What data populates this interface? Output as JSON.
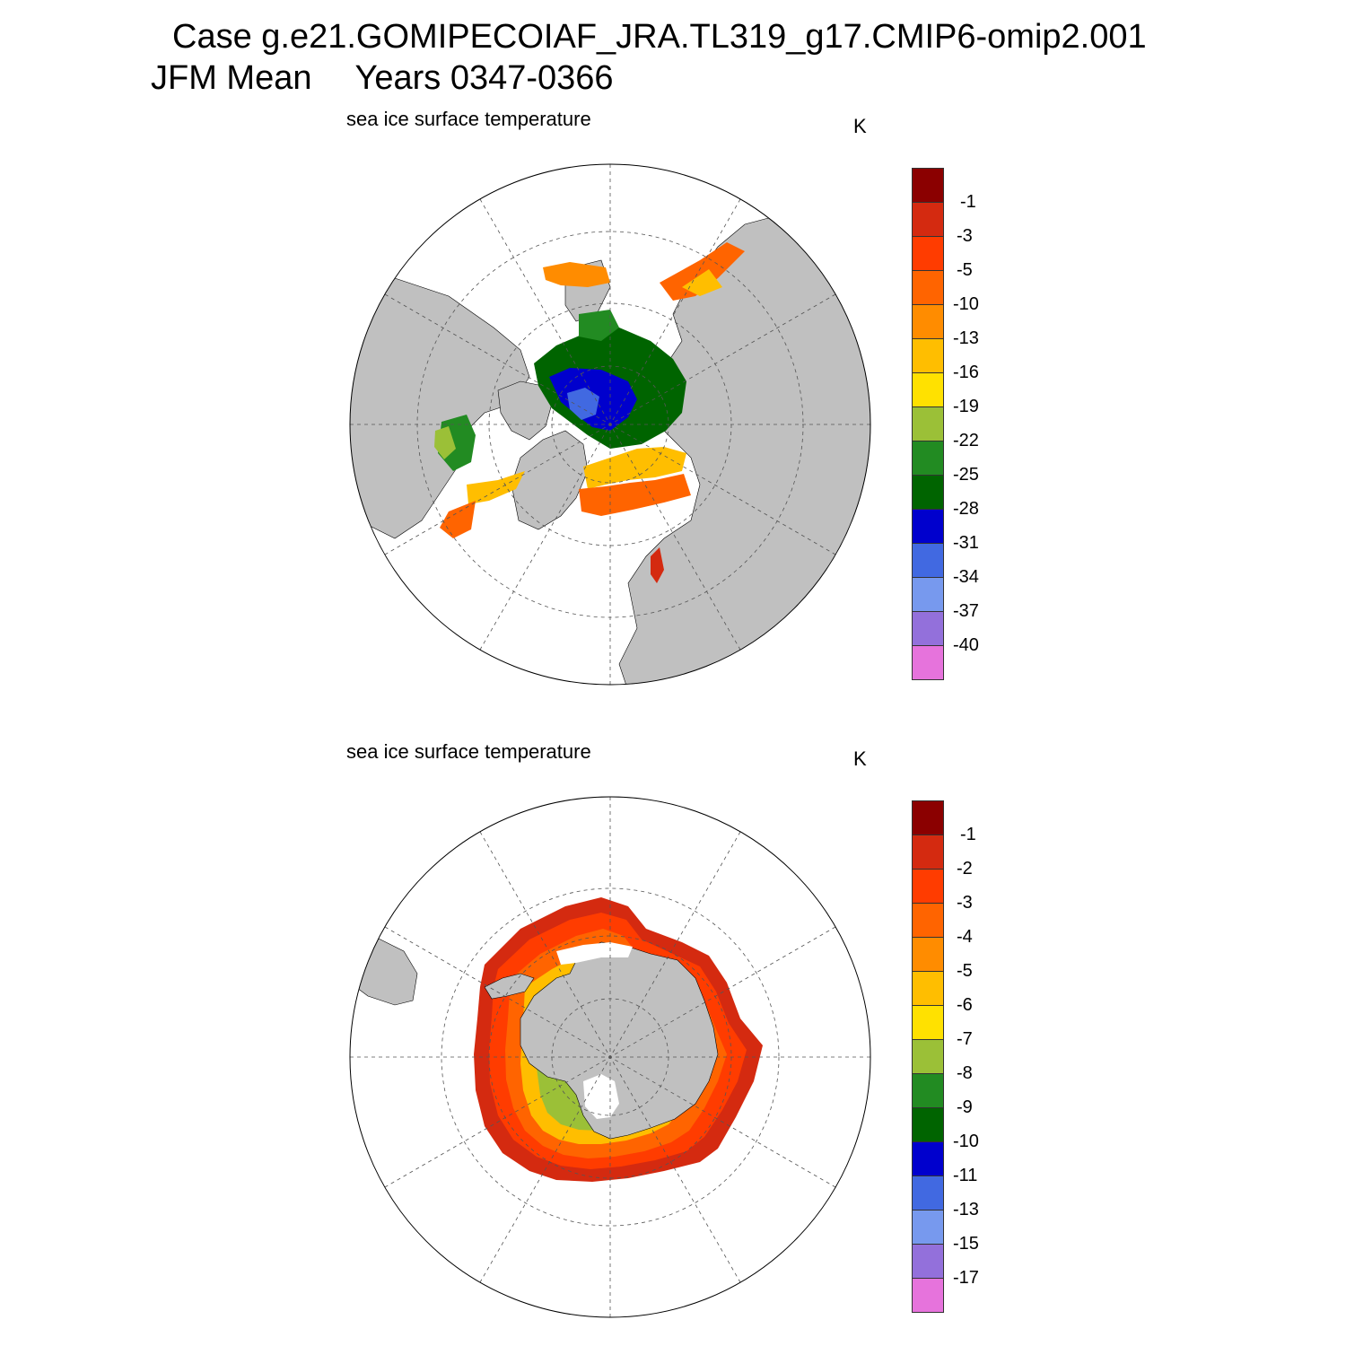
{
  "header": {
    "case": "Case g.e21.GOMIPECOIAF_JRA.TL319_g17.CMIP6-omip2.001",
    "season": "JFM Mean",
    "years": "Years 0347-0366"
  },
  "colors": {
    "land": "#c0c0c0",
    "ocean": "#ffffff",
    "grid": "#555555",
    "palette": [
      "#8b0000",
      "#d42a10",
      "#ff3c00",
      "#ff6400",
      "#ff8c00",
      "#ffbe00",
      "#ffe100",
      "#9bc037",
      "#228b22",
      "#006400",
      "#0000cd",
      "#4169e1",
      "#7799ee",
      "#9370db",
      "#e673dc"
    ]
  },
  "panels": [
    {
      "id": "north",
      "title": "sea ice surface temperature",
      "units": "K",
      "hemisphere": "north",
      "colorbar_labels": [
        "-1",
        "-3",
        "-5",
        "-10",
        "-13",
        "-16",
        "-19",
        "-22",
        "-25",
        "-28",
        "-31",
        "-34",
        "-37",
        "-40"
      ]
    },
    {
      "id": "south",
      "title": "sea ice surface temperature",
      "units": "K",
      "hemisphere": "south",
      "colorbar_labels": [
        "-1",
        "-2",
        "-3",
        "-4",
        "-5",
        "-6",
        "-7",
        "-8",
        "-9",
        "-10",
        "-11",
        "-13",
        "-15",
        "-17"
      ]
    }
  ]
}
